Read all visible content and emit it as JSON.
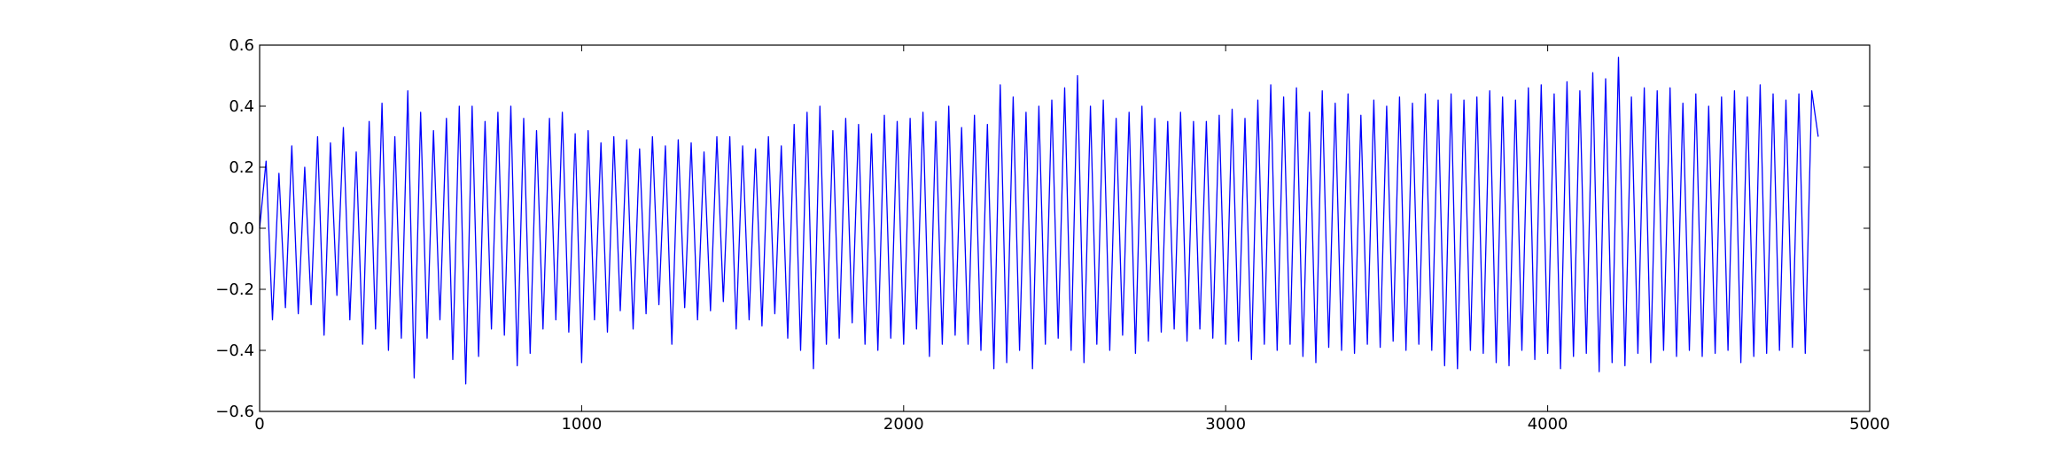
{
  "colors": {
    "line": "#0000ff",
    "axes": "#000000",
    "background": "#ffffff"
  },
  "chart_data": {
    "type": "line",
    "title": "",
    "xlabel": "",
    "ylabel": "",
    "xlim": [
      0,
      5000
    ],
    "ylim": [
      -0.6,
      0.6
    ],
    "xticks": [
      0,
      1000,
      2000,
      3000,
      4000,
      5000
    ],
    "xtick_labels": [
      "0",
      "1000",
      "2000",
      "3000",
      "4000",
      "5000"
    ],
    "yticks": [
      -0.6,
      -0.4,
      -0.2,
      0.0,
      0.2,
      0.4,
      0.6
    ],
    "ytick_labels": [
      "−0.6",
      "−0.4",
      "−0.2",
      "0.0",
      "0.2",
      "0.4",
      "0.6"
    ],
    "grid": false,
    "legend": "none",
    "series": [
      {
        "x_step": 20,
        "values": [
          0.0,
          0.22,
          -0.3,
          0.18,
          -0.26,
          0.27,
          -0.28,
          0.2,
          -0.25,
          0.3,
          -0.35,
          0.28,
          -0.22,
          0.33,
          -0.3,
          0.25,
          -0.38,
          0.35,
          -0.33,
          0.41,
          -0.4,
          0.3,
          -0.36,
          0.45,
          -0.49,
          0.38,
          -0.36,
          0.32,
          -0.3,
          0.36,
          -0.43,
          0.4,
          -0.51,
          0.4,
          -0.42,
          0.35,
          -0.33,
          0.38,
          -0.35,
          0.4,
          -0.45,
          0.36,
          -0.41,
          0.32,
          -0.33,
          0.36,
          -0.3,
          0.38,
          -0.34,
          0.31,
          -0.44,
          0.32,
          -0.3,
          0.28,
          -0.34,
          0.3,
          -0.27,
          0.29,
          -0.33,
          0.26,
          -0.28,
          0.3,
          -0.25,
          0.27,
          -0.38,
          0.29,
          -0.26,
          0.28,
          -0.3,
          0.25,
          -0.27,
          0.3,
          -0.24,
          0.3,
          -0.33,
          0.27,
          -0.3,
          0.26,
          -0.32,
          0.3,
          -0.28,
          0.27,
          -0.36,
          0.34,
          -0.4,
          0.38,
          -0.46,
          0.4,
          -0.38,
          0.32,
          -0.36,
          0.36,
          -0.31,
          0.34,
          -0.38,
          0.31,
          -0.4,
          0.37,
          -0.36,
          0.35,
          -0.38,
          0.36,
          -0.33,
          0.38,
          -0.42,
          0.35,
          -0.38,
          0.4,
          -0.35,
          0.33,
          -0.38,
          0.37,
          -0.4,
          0.34,
          -0.46,
          0.47,
          -0.44,
          0.43,
          -0.4,
          0.38,
          -0.46,
          0.4,
          -0.38,
          0.42,
          -0.36,
          0.46,
          -0.4,
          0.5,
          -0.44,
          0.4,
          -0.38,
          0.42,
          -0.4,
          0.36,
          -0.35,
          0.38,
          -0.41,
          0.4,
          -0.37,
          0.36,
          -0.34,
          0.35,
          -0.33,
          0.38,
          -0.37,
          0.35,
          -0.33,
          0.35,
          -0.36,
          0.37,
          -0.38,
          0.39,
          -0.37,
          0.36,
          -0.43,
          0.42,
          -0.38,
          0.47,
          -0.4,
          0.43,
          -0.38,
          0.46,
          -0.42,
          0.38,
          -0.44,
          0.45,
          -0.39,
          0.41,
          -0.4,
          0.44,
          -0.41,
          0.37,
          -0.38,
          0.42,
          -0.39,
          0.4,
          -0.37,
          0.43,
          -0.4,
          0.41,
          -0.38,
          0.44,
          -0.4,
          0.42,
          -0.45,
          0.44,
          -0.46,
          0.42,
          -0.4,
          0.43,
          -0.41,
          0.45,
          -0.44,
          0.43,
          -0.45,
          0.42,
          -0.4,
          0.46,
          -0.43,
          0.47,
          -0.41,
          0.44,
          -0.46,
          0.48,
          -0.42,
          0.45,
          -0.41,
          0.51,
          -0.47,
          0.49,
          -0.44,
          0.56,
          -0.45,
          0.43,
          -0.41,
          0.46,
          -0.44,
          0.45,
          -0.4,
          0.46,
          -0.42,
          0.41,
          -0.4,
          0.44,
          -0.42,
          0.4,
          -0.41,
          0.43,
          -0.4,
          0.45,
          -0.44,
          0.43,
          -0.42,
          0.47,
          -0.41,
          0.44,
          -0.4,
          0.42,
          -0.39,
          0.44,
          -0.41,
          0.45,
          0.3
        ]
      }
    ]
  }
}
